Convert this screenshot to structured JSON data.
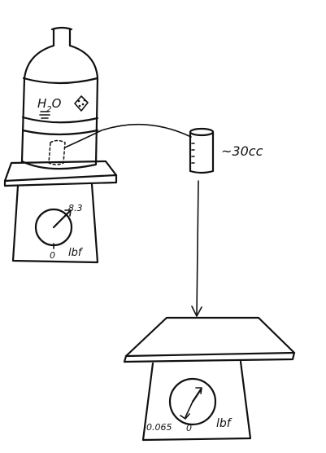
{
  "labels": {
    "water_formula_h": "H",
    "water_formula_sub": "2",
    "water_formula_o": "O",
    "cup_volume": "~30cc",
    "left_scale_reading": "8.3",
    "left_scale_zero": "0",
    "left_scale_unit": "lbf",
    "right_scale_reading": "0.065",
    "right_scale_zero": "0",
    "right_scale_unit": "lbf"
  }
}
